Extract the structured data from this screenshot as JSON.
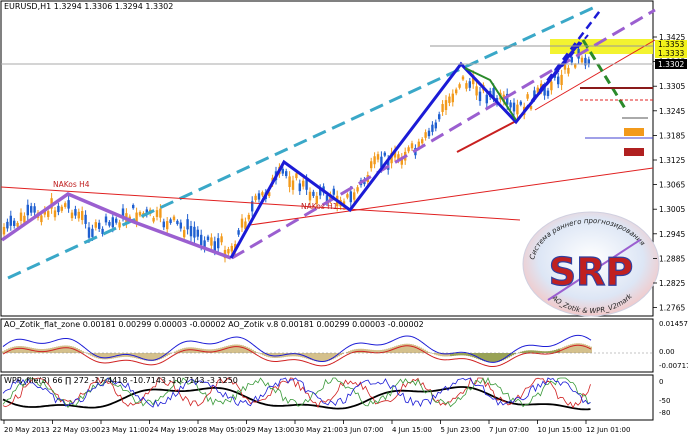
{
  "symbol_header": "EURUSD,H1  1.3294 1.3306 1.3294 1.3302",
  "colors": {
    "candle": "#1f5fd0",
    "candle_alt": "#f29a1b",
    "channel_dash": "#3aa8c8",
    "wave_blue": "#1b1bd6",
    "wave_purple": "#9b5fd0",
    "trend_red": "#e02020",
    "green_dash": "#2a8a2a",
    "highlight_zone": "#f2f21a"
  },
  "annotations": {
    "nakos_label": "NAKos H4",
    "nakos_h1_label": "NAKos H1"
  },
  "main_price_axis": {
    "ticks": [
      "1.3425",
      "1.3365",
      "1.3305",
      "1.3245",
      "1.3185",
      "1.3125",
      "1.3065",
      "1.3005",
      "1.2945",
      "1.2885",
      "1.2825",
      "1.2765"
    ],
    "current_price": "1.3302",
    "highlight_prices": [
      "1.3353",
      "1.3333"
    ]
  },
  "logo": {
    "main_text": "SRP",
    "arc_text_top": "Система раннего прогнозирования",
    "arc_text_bottom": "AO_Zotik & WPR_V2mark"
  },
  "indicator1": {
    "header": "AO_Zotik_flat_zone 0.00181 0.00299 0.00003 -0.00002   AO_Zotik v.8 0.00181 0.00299 0.00003 -0.00002",
    "axis": [
      "0.01457",
      "0.00",
      "-0.00717"
    ]
  },
  "indicator2": {
    "header": "WPR_file(3) 66 ∏ 272 -17.4418 -10.7143 -10.7143 -3.1250",
    "axis": [
      "0",
      "-50",
      "-80"
    ]
  },
  "time_axis": [
    "20 May 2013",
    "22 May 03:00",
    "23 May 11:00",
    "24 May 19:00",
    "28 May 05:00",
    "29 May 13:00",
    "30 May 21:00",
    "3 Jun 07:00",
    "4 Jun 15:00",
    "5 Jun 23:00",
    "7 Jun 07:00",
    "10 Jun 15:00",
    "12 Jun 01:00"
  ]
}
